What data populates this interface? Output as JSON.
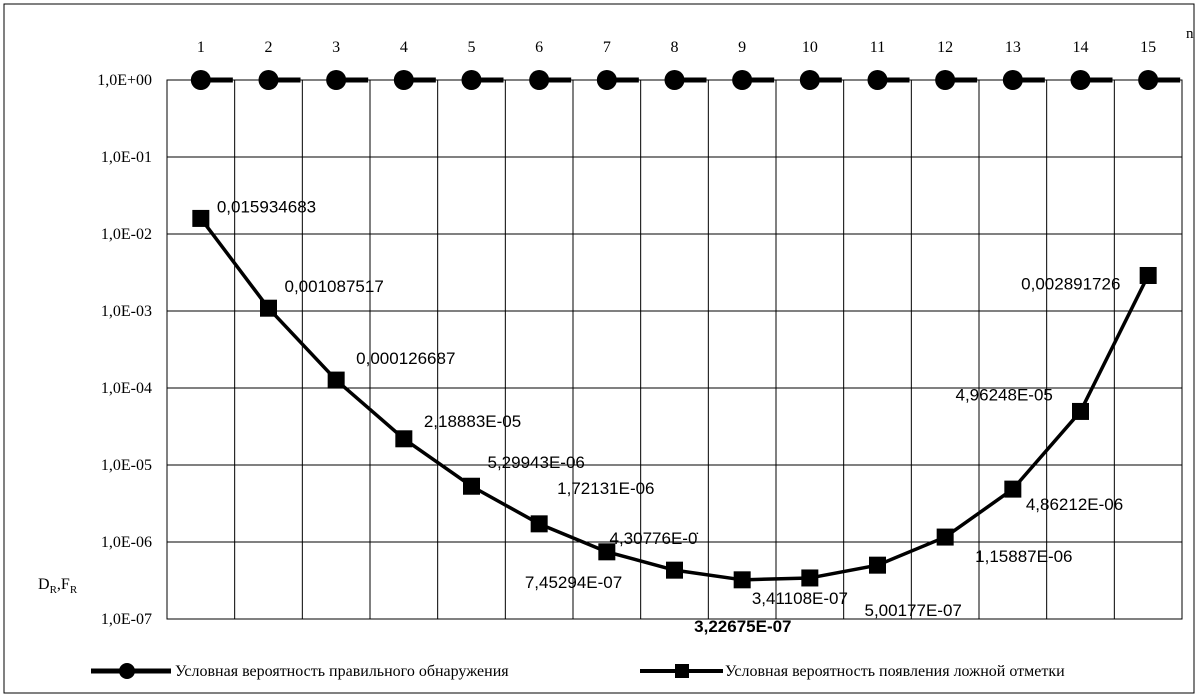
{
  "chart_data": {
    "type": "line",
    "x_axis_name": "n",
    "y_axis_name_main": "D",
    "y_axis_name_main_sub": "R",
    "y_axis_name_sep": ",",
    "y_axis_name_second": "F",
    "y_axis_name_second_sub": "R",
    "x": [
      1,
      2,
      3,
      4,
      5,
      6,
      7,
      8,
      9,
      10,
      11,
      12,
      13,
      14,
      15
    ],
    "x_tick_labels": [
      "1",
      "2",
      "3",
      "4",
      "5",
      "6",
      "7",
      "8",
      "9",
      "10",
      "11",
      "12",
      "13",
      "14",
      "15"
    ],
    "y_scale": "log",
    "ylim": [
      1e-07,
      1
    ],
    "y_tick_values": [
      1,
      0.1,
      0.01,
      0.001,
      0.0001,
      1e-05,
      1e-06,
      1e-07
    ],
    "y_tick_labels": [
      "1,0E+00",
      "1,0E-01",
      "1,0E-02",
      "1,0E-03",
      "1,0E-04",
      "1,0E-05",
      "1,0E-06",
      "1,0E-07"
    ],
    "grid": true,
    "legend_position": "bottom",
    "series": [
      {
        "key": "D",
        "name": "Условная вероятность правильного обнаружения",
        "marker": "circle",
        "line_style": "dashed",
        "values": [
          1,
          1,
          1,
          1,
          1,
          1,
          1,
          1,
          1,
          1,
          1,
          1,
          1,
          1,
          1
        ]
      },
      {
        "key": "F",
        "name": "Условная вероятность появления ложной отметки",
        "marker": "square",
        "line_style": "solid",
        "values": [
          0.015934683,
          0.001087517,
          0.000126687,
          2.18883e-05,
          5.29943e-06,
          1.72131e-06,
          7.45294e-07,
          4.30776e-07,
          3.22675e-07,
          3.41108e-07,
          5.00177e-07,
          1.15887e-06,
          4.86212e-06,
          4.96248e-05,
          0.002891726
        ],
        "data_labels": [
          "0,015934683",
          "0,001087517",
          "0,000126687",
          "2,18883E-05",
          "5,29943E-06",
          "1,72131E-06",
          "7,45294E-07",
          "4,30776E-0̇",
          "3,22675E-07",
          "3,41108E-07",
          "5,00177E-07",
          "1,15887E-06",
          "4,86212E-06",
          "4,96248E-05",
          "0,002891726"
        ],
        "min_index": 8
      }
    ]
  }
}
